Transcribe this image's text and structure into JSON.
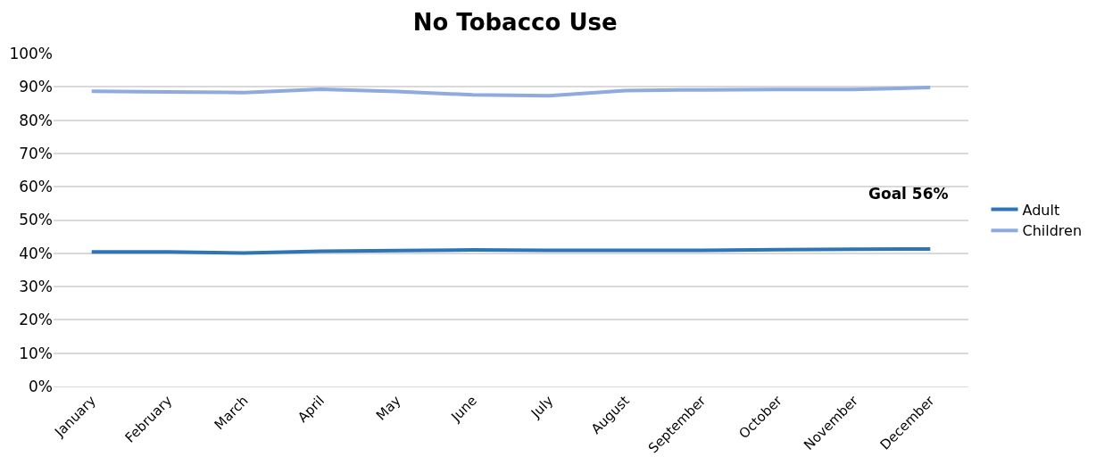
{
  "chart_data": {
    "type": "line",
    "title": "No Tobacco Use",
    "categories": [
      "January",
      "February",
      "March",
      "April",
      "May",
      "June",
      "July",
      "August",
      "September",
      "October",
      "November",
      "December"
    ],
    "series": [
      {
        "name": "Adult",
        "color": "#2e75b6",
        "values": [
          40.4,
          40.4,
          40.1,
          40.6,
          40.8,
          41.0,
          40.9,
          40.9,
          40.9,
          41.1,
          41.2,
          41.3
        ]
      },
      {
        "name": "Children",
        "color": "#8faadc",
        "values": [
          88.7,
          88.5,
          88.3,
          89.3,
          88.6,
          87.6,
          87.3,
          88.9,
          89.1,
          89.2,
          89.2,
          89.8
        ]
      }
    ],
    "ylim": [
      0,
      100
    ],
    "yticks": [
      {
        "value": 0,
        "label": "0%"
      },
      {
        "value": 10,
        "label": "10%"
      },
      {
        "value": 20,
        "label": "20%"
      },
      {
        "value": 30,
        "label": "30%"
      },
      {
        "value": 40,
        "label": "40%"
      },
      {
        "value": 50,
        "label": "50%"
      },
      {
        "value": 60,
        "label": "60%"
      },
      {
        "value": 70,
        "label": "70%"
      },
      {
        "value": 80,
        "label": "80%"
      },
      {
        "value": 90,
        "label": "90%"
      },
      {
        "value": 100,
        "label": "100%"
      }
    ],
    "annotations": [
      "Goal 56%"
    ],
    "grid": "y",
    "legend": "right",
    "marker": "none",
    "line_style": "solid"
  }
}
